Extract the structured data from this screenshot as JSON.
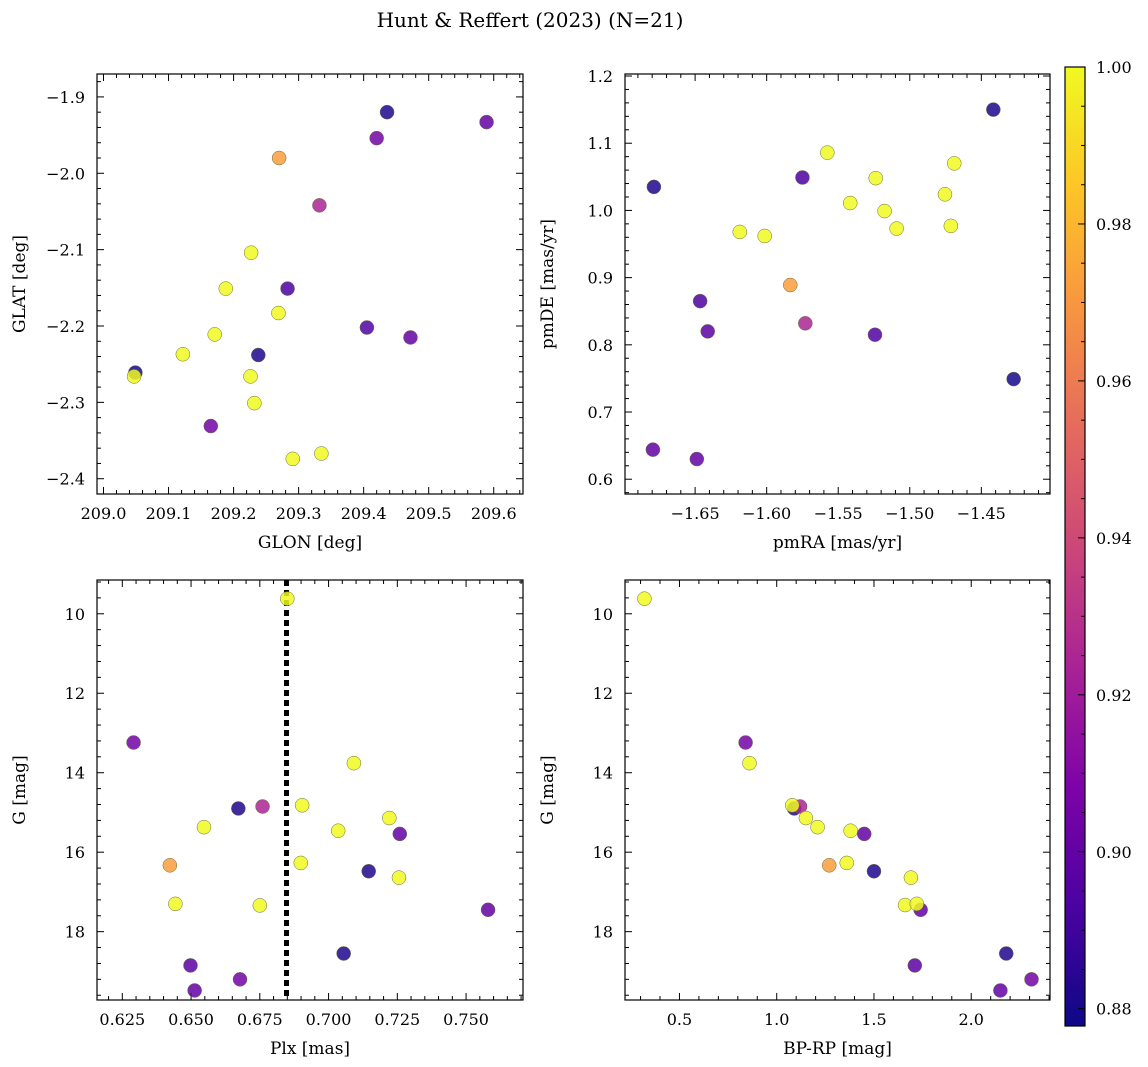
{
  "chart_data": {
    "title": "Hunt & Reffert (2023) (N=21)",
    "colorbar": {
      "range": [
        0.8778,
        1.0
      ],
      "ticks": [
        "0.88",
        "0.90",
        "0.92",
        "0.94",
        "0.96",
        "0.98",
        "1.00"
      ],
      "colormap": "plasma"
    },
    "panels": [
      {
        "type": "scatter",
        "xlabel": "GLON [deg]",
        "ylabel": "GLAT [deg]",
        "xlim": [
          208.99,
          209.645
        ],
        "ylim": [
          -2.42,
          -1.87
        ],
        "xticks": [
          "209.0",
          "209.1",
          "209.2",
          "209.3",
          "209.4",
          "209.5",
          "209.6"
        ],
        "yticks": [
          "−1.9",
          "−2.0",
          "−2.1",
          "−2.2",
          "−2.3",
          "−2.4"
        ],
        "points": [
          {
            "x": 209.049,
            "y": -2.261,
            "c": 0.88
          },
          {
            "x": 209.047,
            "y": -2.266,
            "c": 1.0
          },
          {
            "x": 209.122,
            "y": -2.237,
            "c": 1.0
          },
          {
            "x": 209.165,
            "y": -2.331,
            "c": 0.905
          },
          {
            "x": 209.171,
            "y": -2.211,
            "c": 1.0
          },
          {
            "x": 209.188,
            "y": -2.151,
            "c": 1.0
          },
          {
            "x": 209.227,
            "y": -2.104,
            "c": 1.0
          },
          {
            "x": 209.226,
            "y": -2.266,
            "c": 1.0
          },
          {
            "x": 209.232,
            "y": -2.301,
            "c": 1.0
          },
          {
            "x": 209.238,
            "y": -2.238,
            "c": 0.882
          },
          {
            "x": 209.27,
            "y": -1.98,
            "c": 0.972
          },
          {
            "x": 209.269,
            "y": -2.183,
            "c": 1.0
          },
          {
            "x": 209.283,
            "y": -2.151,
            "c": 0.893
          },
          {
            "x": 209.291,
            "y": -2.374,
            "c": 1.0
          },
          {
            "x": 209.332,
            "y": -2.042,
            "c": 0.924
          },
          {
            "x": 209.335,
            "y": -2.367,
            "c": 1.0
          },
          {
            "x": 209.405,
            "y": -2.202,
            "c": 0.895
          },
          {
            "x": 209.42,
            "y": -1.954,
            "c": 0.905
          },
          {
            "x": 209.436,
            "y": -1.92,
            "c": 0.882
          },
          {
            "x": 209.472,
            "y": -2.215,
            "c": 0.9
          },
          {
            "x": 209.589,
            "y": -1.933,
            "c": 0.9
          }
        ]
      },
      {
        "type": "scatter",
        "xlabel": "pmRA [mas/yr]",
        "ylabel": "pmDE [mas/yr]",
        "xlim": [
          -1.699,
          -1.402
        ],
        "ylim": [
          0.578,
          1.203
        ],
        "xticks": [
          "−1.65",
          "−1.60",
          "−1.55",
          "−1.50",
          "−1.45"
        ],
        "yticks": [
          "1.2",
          "1.1",
          "1.0",
          "0.9",
          "0.8",
          "0.7",
          "0.6"
        ],
        "points": [
          {
            "x": -1.6788,
            "y": 1.035,
            "c": 0.882
          },
          {
            "x": -1.6795,
            "y": 0.644,
            "c": 0.9
          },
          {
            "x": -1.6488,
            "y": 0.63,
            "c": 0.9
          },
          {
            "x": -1.6465,
            "y": 0.865,
            "c": 0.893
          },
          {
            "x": -1.6412,
            "y": 0.82,
            "c": 0.898
          },
          {
            "x": -1.6188,
            "y": 0.968,
            "c": 1.0
          },
          {
            "x": -1.6014,
            "y": 0.962,
            "c": 1.0
          },
          {
            "x": -1.5835,
            "y": 0.889,
            "c": 0.972
          },
          {
            "x": -1.575,
            "y": 1.049,
            "c": 0.893
          },
          {
            "x": -1.573,
            "y": 0.832,
            "c": 0.924
          },
          {
            "x": -1.5576,
            "y": 1.086,
            "c": 1.0
          },
          {
            "x": -1.5416,
            "y": 1.011,
            "c": 1.0
          },
          {
            "x": -1.5238,
            "y": 1.048,
            "c": 1.0
          },
          {
            "x": -1.5243,
            "y": 0.815,
            "c": 0.895
          },
          {
            "x": -1.5176,
            "y": 0.999,
            "c": 1.0
          },
          {
            "x": -1.5092,
            "y": 0.973,
            "c": 1.0
          },
          {
            "x": -1.4754,
            "y": 1.024,
            "c": 1.0
          },
          {
            "x": -1.4713,
            "y": 0.977,
            "c": 1.0
          },
          {
            "x": -1.4689,
            "y": 1.07,
            "c": 1.0
          },
          {
            "x": -1.4416,
            "y": 1.15,
            "c": 0.882
          },
          {
            "x": -1.4274,
            "y": 0.749,
            "c": 0.88
          }
        ]
      },
      {
        "type": "scatter",
        "xlabel": "Plx [mas]",
        "ylabel": "G [mag]",
        "xlim": [
          0.6158,
          0.7707
        ],
        "ylim": [
          19.72,
          9.15
        ],
        "yinverted": true,
        "xticks": [
          "0.625",
          "0.650",
          "0.675",
          "0.700",
          "0.725",
          "0.750"
        ],
        "yticks": [
          "10",
          "12",
          "14",
          "16",
          "18"
        ],
        "vline": 0.6847,
        "points": [
          {
            "x": 0.685,
            "y": 9.62,
            "c": 1.0
          },
          {
            "x": 0.6291,
            "y": 13.24,
            "c": 0.905
          },
          {
            "x": 0.7092,
            "y": 13.76,
            "c": 1.0
          },
          {
            "x": 0.6904,
            "y": 14.82,
            "c": 1.0
          },
          {
            "x": 0.6672,
            "y": 14.9,
            "c": 0.882
          },
          {
            "x": 0.676,
            "y": 14.85,
            "c": 0.924
          },
          {
            "x": 0.7221,
            "y": 15.14,
            "c": 1.0
          },
          {
            "x": 0.6547,
            "y": 15.37,
            "c": 1.0
          },
          {
            "x": 0.7035,
            "y": 15.46,
            "c": 1.0
          },
          {
            "x": 0.7259,
            "y": 15.54,
            "c": 0.9
          },
          {
            "x": 0.6899,
            "y": 16.27,
            "c": 1.0
          },
          {
            "x": 0.6423,
            "y": 16.33,
            "c": 0.972
          },
          {
            "x": 0.7146,
            "y": 16.48,
            "c": 0.882
          },
          {
            "x": 0.7256,
            "y": 16.64,
            "c": 1.0
          },
          {
            "x": 0.6443,
            "y": 17.3,
            "c": 1.0
          },
          {
            "x": 0.675,
            "y": 17.34,
            "c": 1.0
          },
          {
            "x": 0.758,
            "y": 17.45,
            "c": 0.9
          },
          {
            "x": 0.7055,
            "y": 18.55,
            "c": 0.882
          },
          {
            "x": 0.6498,
            "y": 18.85,
            "c": 0.898
          },
          {
            "x": 0.6678,
            "y": 19.2,
            "c": 0.905
          },
          {
            "x": 0.6513,
            "y": 19.48,
            "c": 0.9
          }
        ]
      },
      {
        "type": "scatter",
        "xlabel": "BP-RP [mag]",
        "ylabel": "G [mag]",
        "xlim": [
          0.22,
          2.405
        ],
        "ylim": [
          19.72,
          9.15
        ],
        "yinverted": true,
        "xticks": [
          "0.5",
          "1.0",
          "1.5",
          "2.0"
        ],
        "yticks": [
          "10",
          "12",
          "14",
          "16",
          "18"
        ],
        "points": [
          {
            "x": 0.32,
            "y": 9.62,
            "c": 1.0
          },
          {
            "x": 0.84,
            "y": 13.24,
            "c": 0.905
          },
          {
            "x": 0.86,
            "y": 13.76,
            "c": 1.0
          },
          {
            "x": 1.12,
            "y": 14.85,
            "c": 0.924
          },
          {
            "x": 1.09,
            "y": 14.9,
            "c": 0.882
          },
          {
            "x": 1.08,
            "y": 14.82,
            "c": 1.0
          },
          {
            "x": 1.15,
            "y": 15.14,
            "c": 1.0
          },
          {
            "x": 1.21,
            "y": 15.37,
            "c": 1.0
          },
          {
            "x": 1.38,
            "y": 15.46,
            "c": 1.0
          },
          {
            "x": 1.45,
            "y": 15.54,
            "c": 0.9
          },
          {
            "x": 1.36,
            "y": 16.27,
            "c": 1.0
          },
          {
            "x": 1.27,
            "y": 16.33,
            "c": 0.972
          },
          {
            "x": 1.5,
            "y": 16.48,
            "c": 0.882
          },
          {
            "x": 1.69,
            "y": 16.64,
            "c": 1.0
          },
          {
            "x": 1.66,
            "y": 17.33,
            "c": 1.0
          },
          {
            "x": 1.72,
            "y": 17.3,
            "c": 1.0
          },
          {
            "x": 1.74,
            "y": 17.45,
            "c": 0.9
          },
          {
            "x": 2.18,
            "y": 18.55,
            "c": 0.882
          },
          {
            "x": 1.71,
            "y": 18.85,
            "c": 0.898
          },
          {
            "x": 2.31,
            "y": 19.2,
            "c": 0.905
          },
          {
            "x": 2.15,
            "y": 19.48,
            "c": 0.9
          }
        ]
      }
    ]
  }
}
